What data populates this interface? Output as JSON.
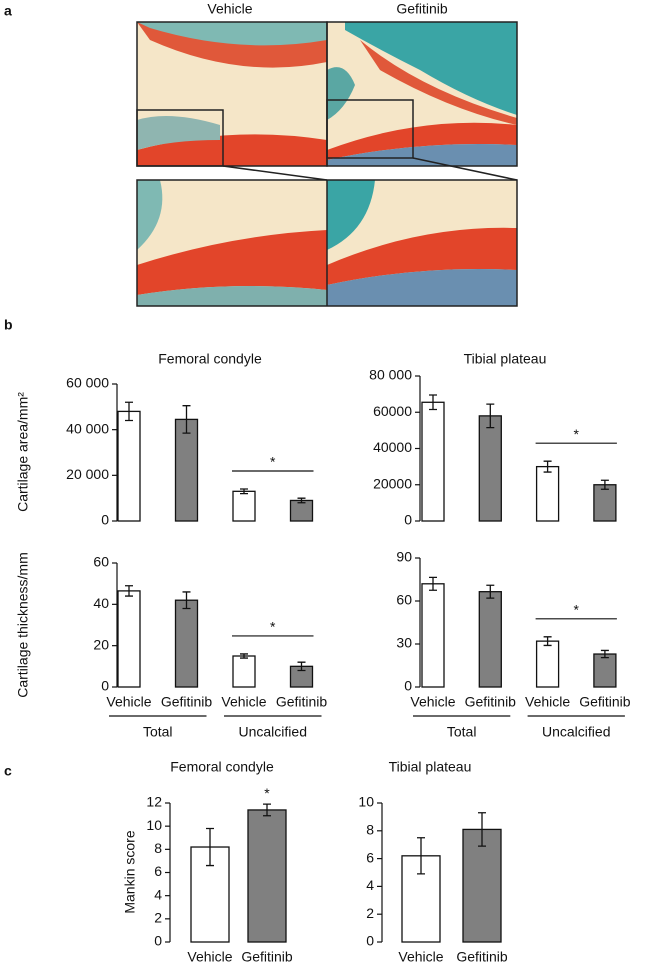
{
  "panel_labels": [
    "a",
    "b",
    "c"
  ],
  "image_labels": [
    "Vehicle",
    "Gefitinib"
  ],
  "chart_data": [
    {
      "type": "bar",
      "title": "Femoral condyle",
      "ylabel": "Cartilage area/mm²",
      "values": [
        48000,
        44500,
        13000,
        9000
      ],
      "errors": [
        4000,
        6000,
        1000,
        1000
      ],
      "colors": [
        "#ffffff",
        "#808080",
        "#ffffff",
        "#808080"
      ],
      "ylim": [
        0,
        60000
      ],
      "yticks": [
        0,
        {
          "value": 20000,
          "label": "20 000"
        },
        {
          "value": 40000,
          "label": "40 000"
        },
        {
          "value": 60000,
          "label": "60 000"
        }
      ],
      "significance": {
        "label": "*",
        "bars": [
          2,
          3
        ]
      }
    },
    {
      "type": "bar",
      "title": "Tibial plateau",
      "values": [
        65500,
        58000,
        30000,
        20000
      ],
      "errors": [
        4000,
        6500,
        3000,
        2500
      ],
      "colors": [
        "#ffffff",
        "#808080",
        "#ffffff",
        "#808080"
      ],
      "ylim": [
        0,
        80000
      ],
      "yticks": [
        0,
        {
          "value": 20000,
          "label": "20000"
        },
        {
          "value": 40000,
          "label": "40000"
        },
        {
          "value": 60000,
          "label": "60000"
        },
        {
          "value": 80000,
          "label": "80 000"
        }
      ],
      "significance": {
        "label": "*",
        "bars": [
          2,
          3
        ]
      }
    },
    {
      "type": "bar",
      "ylabel": "Cartilage thickness/mm",
      "categories": [
        "Vehicle",
        "Gefitinib",
        "Vehicle",
        "Gefitinib"
      ],
      "groups": [
        "Total",
        "Uncalcified"
      ],
      "values": [
        46.5,
        42,
        15,
        10
      ],
      "errors": [
        2.5,
        4,
        1,
        2
      ],
      "colors": [
        "#ffffff",
        "#808080",
        "#ffffff",
        "#808080"
      ],
      "ylim": [
        0,
        60
      ],
      "yticks": [
        0,
        20,
        40,
        60
      ],
      "significance": {
        "label": "*",
        "bars": [
          2,
          3
        ]
      }
    },
    {
      "type": "bar",
      "categories": [
        "Vehicle",
        "Gefitinib",
        "Vehicle",
        "Gefitinib"
      ],
      "groups": [
        "Total",
        "Uncalcified"
      ],
      "values": [
        72,
        66.5,
        32,
        23
      ],
      "errors": [
        4.5,
        4.5,
        3,
        2.5
      ],
      "colors": [
        "#ffffff",
        "#808080",
        "#ffffff",
        "#808080"
      ],
      "ylim": [
        0,
        90
      ],
      "yticks": [
        0,
        30,
        60,
        90
      ],
      "significance": {
        "label": "*",
        "bars": [
          2,
          3
        ]
      }
    },
    {
      "type": "bar",
      "title": "Femoral condyle",
      "ylabel": "Mankin score",
      "categories": [
        "Vehicle",
        "Gefitinib"
      ],
      "values": [
        8.2,
        11.4
      ],
      "errors": [
        1.6,
        0.5
      ],
      "colors": [
        "#ffffff",
        "#808080"
      ],
      "ylim": [
        0,
        12
      ],
      "yticks": [
        0,
        2,
        4,
        6,
        8,
        10,
        12
      ],
      "significance": {
        "label": "*",
        "bars": [
          1
        ]
      }
    },
    {
      "type": "bar",
      "title": "Tibial plateau",
      "categories": [
        "Vehicle",
        "Gefitinib"
      ],
      "values": [
        6.2,
        8.1
      ],
      "errors": [
        1.3,
        1.2
      ],
      "colors": [
        "#ffffff",
        "#808080"
      ],
      "ylim": [
        0,
        10
      ],
      "yticks": [
        0,
        2,
        4,
        6,
        8,
        10
      ]
    }
  ]
}
